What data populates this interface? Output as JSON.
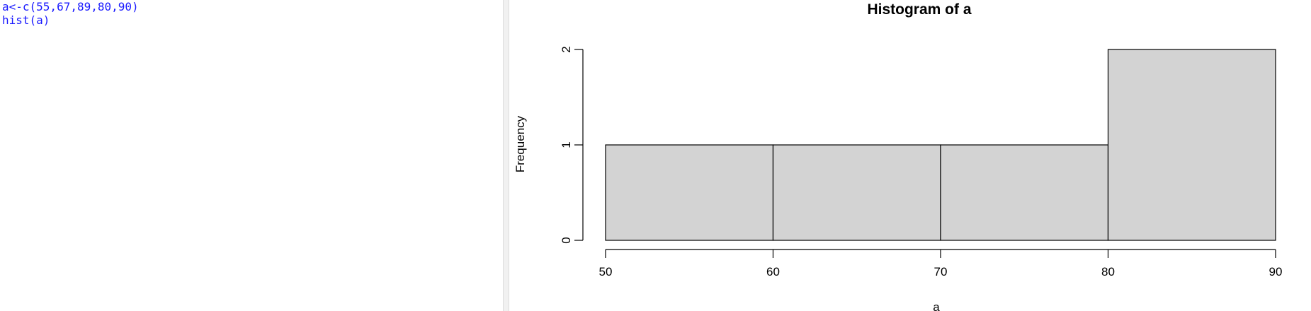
{
  "console": {
    "lines": [
      "a<-c(55,67,89,80,90)",
      "hist(a)"
    ],
    "text_color": "#1a1aff"
  },
  "chart_data": {
    "type": "bar",
    "histogram": true,
    "title": "Histogram of a",
    "xlabel": "a",
    "ylabel": "Frequency",
    "bins": [
      {
        "start": 50,
        "end": 60,
        "count": 1
      },
      {
        "start": 60,
        "end": 70,
        "count": 1
      },
      {
        "start": 70,
        "end": 80,
        "count": 1
      },
      {
        "start": 80,
        "end": 90,
        "count": 2
      }
    ],
    "xlim": [
      50,
      90
    ],
    "ylim": [
      0,
      2
    ],
    "x_ticks": [
      50,
      60,
      70,
      80,
      90
    ],
    "y_ticks": [
      0,
      1,
      2
    ],
    "bar_fill": "#d3d3d3",
    "bar_stroke": "#000000",
    "grid": false,
    "legend": "none"
  }
}
